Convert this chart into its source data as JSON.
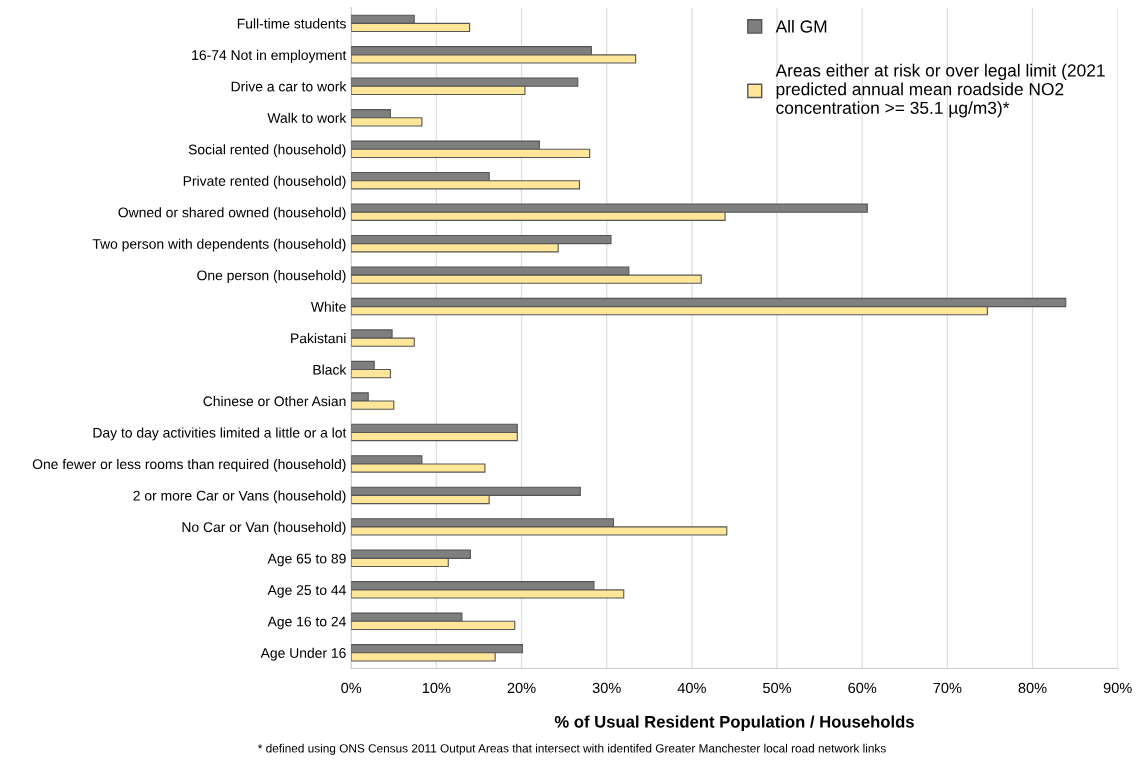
{
  "chart_data": {
    "type": "bar",
    "orientation": "horizontal",
    "categories": [
      "Full-time students",
      "16-74 Not in employment",
      "Drive a car to work",
      "Walk to work",
      "Social rented (household)",
      "Private rented (household)",
      "Owned or shared owned (household)",
      "Two person with dependents (household)",
      "One person (household)",
      "White",
      "Pakistani",
      "Black",
      "Chinese or Other Asian",
      "Day to day activities limited a little or a lot",
      "One fewer or less rooms than required (household)",
      "2 or more Car or Vans (household)",
      "No Car or Van (household)",
      "Age 65 to 89",
      "Age 25 to 44",
      "Age 16 to 24",
      "Age Under 16"
    ],
    "series": [
      {
        "name": "All GM",
        "color": "#7f7f7f",
        "values": [
          7.4,
          28.2,
          26.6,
          4.6,
          22.1,
          16.2,
          60.6,
          30.5,
          32.6,
          83.9,
          4.8,
          2.7,
          2.0,
          19.5,
          8.3,
          26.9,
          30.8,
          14.0,
          28.5,
          13.0,
          20.1
        ]
      },
      {
        "name": "Areas either at risk or over legal limit (2021 predicted annual mean roadside NO2 concentration >= 35.1 µg/m3)*",
        "color": "#ffe699",
        "values": [
          13.9,
          33.4,
          20.4,
          8.3,
          28.0,
          26.8,
          43.9,
          24.3,
          41.1,
          74.7,
          7.4,
          4.6,
          5.0,
          19.5,
          15.7,
          16.2,
          44.1,
          11.4,
          32.0,
          19.2,
          16.9
        ]
      }
    ],
    "xlabel": "% of Usual Resident Population / Households",
    "xlim": [
      0,
      90
    ],
    "xticks": [
      {
        "value": 0,
        "label": "0%"
      },
      {
        "value": 10,
        "label": "10%"
      },
      {
        "value": 20,
        "label": "20%"
      },
      {
        "value": 30,
        "label": "30%"
      },
      {
        "value": 40,
        "label": "40%"
      },
      {
        "value": 50,
        "label": "50%"
      },
      {
        "value": 60,
        "label": "60%"
      },
      {
        "value": 70,
        "label": "70%"
      },
      {
        "value": 80,
        "label": "80%"
      },
      {
        "value": 90,
        "label": "90%"
      }
    ],
    "grid": "x",
    "legend": "top right",
    "annotations": [
      "* defined using ONS Census 2011 Output Areas that intersect with identifed Greater Manchester local road network links"
    ]
  }
}
